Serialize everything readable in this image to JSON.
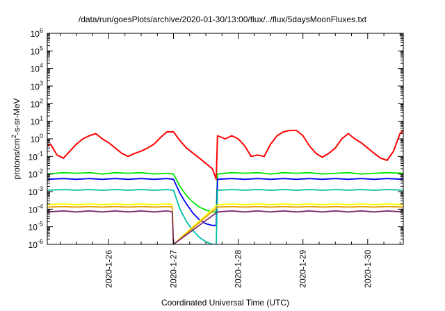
{
  "chart_data": {
    "type": "line",
    "title": "/data/run/goesPlots/archive/2020-01-30/13:00/flux/../flux/5daysMoonFluxes.txt",
    "xlabel": "Coordinated Universal Time (UTC)",
    "ylabel": {
      "prefix": "protons/cm",
      "superscript": "2",
      "suffix": "-s-sr-MeV"
    },
    "yscale": "log",
    "ylim": [
      1e-06,
      1000000.0
    ],
    "xlim": [
      25.05,
      30.55
    ],
    "ytick_labels": [
      {
        "value": -6,
        "base": "10",
        "exp": "-6"
      },
      {
        "value": -5,
        "base": "10",
        "exp": "-5"
      },
      {
        "value": -4,
        "base": "10",
        "exp": "-4"
      },
      {
        "value": -3,
        "base": "10",
        "exp": "-3"
      },
      {
        "value": -2,
        "base": "10",
        "exp": "-2"
      },
      {
        "value": -1,
        "base": "10",
        "exp": "-1"
      },
      {
        "value": 0,
        "base": "10",
        "exp": "0"
      },
      {
        "value": 1,
        "base": "10",
        "exp": "1"
      },
      {
        "value": 2,
        "base": "10",
        "exp": "2"
      },
      {
        "value": 3,
        "base": "10",
        "exp": "3"
      },
      {
        "value": 4,
        "base": "10",
        "exp": "4"
      },
      {
        "value": 5,
        "base": "10",
        "exp": "5"
      },
      {
        "value": 6,
        "base": "10",
        "exp": "6"
      }
    ],
    "xtick_labels": [
      {
        "value": 26,
        "label": "2020-1-26"
      },
      {
        "value": 27,
        "label": "2020-1-27"
      },
      {
        "value": 28,
        "label": "2020-1-28"
      },
      {
        "value": 29,
        "label": "2020-1-29"
      },
      {
        "value": 30,
        "label": "2020-1-30"
      }
    ],
    "grid": false,
    "legend": "none",
    "series": [
      {
        "color": "#ff0000",
        "x": [
          25.05,
          25.1,
          25.2,
          25.3,
          25.4,
          25.5,
          25.6,
          25.7,
          25.8,
          25.9,
          26.0,
          26.1,
          26.2,
          26.3,
          26.4,
          26.5,
          26.6,
          26.7,
          26.8,
          26.9,
          27.0,
          27.1,
          27.2,
          27.4,
          27.6,
          27.66,
          27.68,
          27.8,
          27.9,
          28.0,
          28.1,
          28.2,
          28.3,
          28.4,
          28.5,
          28.6,
          28.7,
          28.8,
          28.9,
          29.0,
          29.1,
          29.2,
          29.3,
          29.4,
          29.5,
          29.6,
          29.7,
          29.8,
          29.9,
          30.0,
          30.1,
          30.2,
          30.3,
          30.4,
          30.5,
          30.55
        ],
        "y": [
          0.4,
          0.5,
          0.12,
          0.08,
          0.2,
          0.5,
          1.0,
          1.5,
          2.0,
          1.0,
          0.6,
          0.3,
          0.15,
          0.1,
          0.15,
          0.2,
          0.3,
          0.5,
          1.2,
          2.5,
          2.5,
          0.8,
          0.3,
          0.08,
          0.02,
          0.005,
          1.5,
          1.0,
          1.5,
          1.0,
          0.4,
          0.1,
          0.12,
          0.1,
          0.5,
          1.5,
          2.5,
          3.0,
          3.0,
          1.5,
          0.4,
          0.15,
          0.09,
          0.15,
          0.3,
          1.0,
          2.0,
          1.0,
          0.6,
          0.3,
          0.15,
          0.08,
          0.06,
          0.2,
          2.0,
          3.0
        ]
      },
      {
        "color": "#00e600",
        "x": [
          25.05,
          25.3,
          25.5,
          25.7,
          25.9,
          26.1,
          26.3,
          26.5,
          26.7,
          26.9,
          27.0,
          27.1,
          27.2,
          27.3,
          27.4,
          27.5,
          27.6,
          27.66,
          27.68,
          27.9,
          28.1,
          28.3,
          28.5,
          28.7,
          28.9,
          29.1,
          29.3,
          29.5,
          29.7,
          29.9,
          30.1,
          30.3,
          30.55
        ],
        "y": [
          0.01,
          0.012,
          0.011,
          0.012,
          0.01,
          0.012,
          0.011,
          0.012,
          0.01,
          0.011,
          0.01,
          0.002,
          0.0006,
          0.00025,
          0.00013,
          9e-05,
          7e-05,
          7e-05,
          0.01,
          0.012,
          0.011,
          0.012,
          0.01,
          0.012,
          0.011,
          0.012,
          0.01,
          0.011,
          0.012,
          0.01,
          0.011,
          0.012,
          0.011
        ]
      },
      {
        "color": "#0000ff",
        "x": [
          25.05,
          25.3,
          25.5,
          25.7,
          25.9,
          26.1,
          26.3,
          26.5,
          26.7,
          26.9,
          27.0,
          27.1,
          27.2,
          27.3,
          27.4,
          27.5,
          27.6,
          27.66,
          27.68,
          27.9,
          28.1,
          28.3,
          28.5,
          28.7,
          28.9,
          29.1,
          29.3,
          29.5,
          29.7,
          29.9,
          30.1,
          30.3,
          30.55
        ],
        "y": [
          0.005,
          0.0055,
          0.005,
          0.0055,
          0.005,
          0.0055,
          0.005,
          0.0055,
          0.005,
          0.0055,
          0.005,
          0.0008,
          0.0002,
          6e-05,
          2.5e-05,
          1.5e-05,
          1.2e-05,
          1.2e-05,
          0.005,
          0.0055,
          0.005,
          0.0055,
          0.005,
          0.0055,
          0.005,
          0.0055,
          0.005,
          0.0055,
          0.005,
          0.0055,
          0.005,
          0.0055,
          0.005
        ]
      },
      {
        "color": "#00bfa5",
        "x": [
          25.05,
          25.3,
          25.5,
          25.7,
          25.9,
          26.1,
          26.3,
          26.5,
          26.7,
          26.9,
          27.0,
          27.1,
          27.2,
          27.3,
          27.4,
          27.5,
          27.6,
          27.66,
          27.68,
          27.9,
          28.1,
          28.3,
          28.5,
          28.7,
          28.9,
          29.1,
          29.3,
          29.5,
          29.7,
          29.9,
          30.1,
          30.3,
          30.55
        ],
        "y": [
          0.0012,
          0.0013,
          0.0012,
          0.0013,
          0.0012,
          0.0013,
          0.0012,
          0.0013,
          0.0012,
          0.0013,
          0.0012,
          0.0001,
          2e-05,
          6e-06,
          2.5e-06,
          1.4e-06,
          1e-06,
          1e-06,
          0.0012,
          0.0013,
          0.0012,
          0.0013,
          0.0012,
          0.0013,
          0.0012,
          0.0013,
          0.0012,
          0.0013,
          0.0012,
          0.0013,
          0.0012,
          0.0013,
          0.0012
        ]
      },
      {
        "color": "#ffff00",
        "x": [
          25.05,
          25.3,
          25.5,
          25.7,
          25.9,
          26.1,
          26.3,
          26.5,
          26.7,
          26.9,
          26.98,
          27.0,
          27.68,
          27.9,
          28.1,
          28.3,
          28.5,
          28.7,
          28.9,
          29.1,
          29.3,
          29.5,
          29.7,
          29.9,
          30.1,
          30.3,
          30.55
        ],
        "y": [
          0.00018,
          0.0002,
          0.00018,
          0.0002,
          0.00018,
          0.0002,
          0.00018,
          0.0002,
          0.00018,
          0.0002,
          0.00018,
          1e-06,
          0.00018,
          0.0002,
          0.00018,
          0.0002,
          0.00018,
          0.0002,
          0.00018,
          0.0002,
          0.00018,
          0.0002,
          0.00018,
          0.0002,
          0.00018,
          0.0002,
          0.00018
        ]
      },
      {
        "color": "#e6a000",
        "x": [
          25.05,
          25.3,
          25.5,
          25.7,
          25.9,
          26.1,
          26.3,
          26.5,
          26.7,
          26.9,
          26.98,
          27.0,
          27.68,
          27.9,
          28.1,
          28.3,
          28.5,
          28.7,
          28.9,
          29.1,
          29.3,
          29.5,
          29.7,
          29.9,
          30.1,
          30.3,
          30.55
        ],
        "y": [
          0.00013,
          0.00014,
          0.00013,
          0.00014,
          0.00013,
          0.00014,
          0.00013,
          0.00014,
          0.00013,
          0.00014,
          0.00013,
          1e-06,
          0.00013,
          0.00014,
          0.00013,
          0.00014,
          0.00013,
          0.00014,
          0.00013,
          0.00014,
          0.00013,
          0.00014,
          0.00013,
          0.00014,
          0.00013,
          0.00014,
          0.00013
        ]
      },
      {
        "color": "#7b2d6e",
        "x": [
          25.05,
          25.3,
          25.5,
          25.7,
          25.9,
          26.1,
          26.3,
          26.5,
          26.7,
          26.9,
          26.98,
          27.0,
          27.68,
          27.9,
          28.1,
          28.3,
          28.5,
          28.7,
          28.9,
          29.1,
          29.3,
          29.5,
          29.7,
          29.9,
          30.1,
          30.3,
          30.55
        ],
        "y": [
          7e-05,
          8e-05,
          7e-05,
          8e-05,
          7e-05,
          8e-05,
          7e-05,
          8e-05,
          7e-05,
          8e-05,
          7e-05,
          1e-06,
          7e-05,
          8e-05,
          7e-05,
          8e-05,
          7e-05,
          8e-05,
          7e-05,
          8e-05,
          7e-05,
          8e-05,
          7e-05,
          8e-05,
          7e-05,
          8e-05,
          7e-05
        ]
      }
    ]
  }
}
